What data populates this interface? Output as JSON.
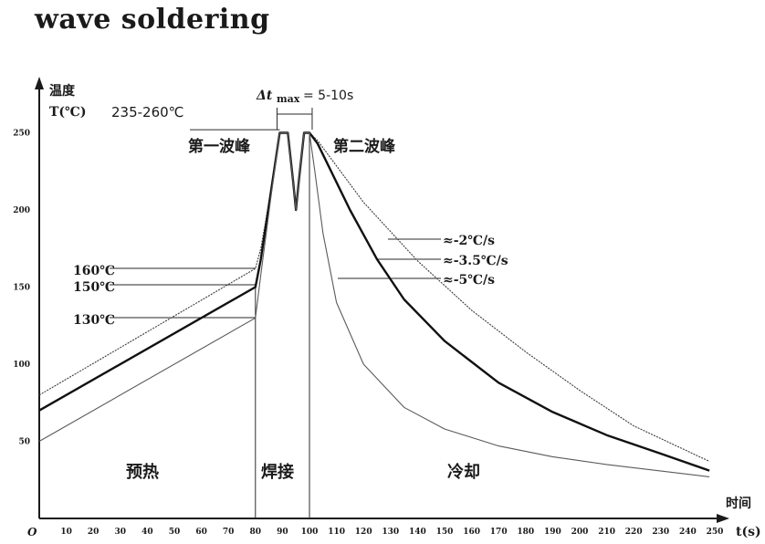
{
  "title": "wave soldering",
  "chart_data": {
    "type": "line",
    "title": "wave soldering",
    "ylabel_line1": "温度",
    "ylabel_line2": "T(℃)",
    "xlabel_line1": "时间",
    "xlabel_line2": "t(s)",
    "origin_label": "O",
    "xlim": [
      0,
      250
    ],
    "ylim": [
      0,
      255
    ],
    "x_ticks": [
      10,
      20,
      30,
      40,
      50,
      60,
      70,
      80,
      90,
      100,
      110,
      120,
      130,
      140,
      150,
      160,
      170,
      180,
      190,
      200,
      210,
      220,
      230,
      240,
      250
    ],
    "y_ticks": [
      50,
      100,
      150,
      200,
      250
    ],
    "series": [
      {
        "values": [
          [
            0,
            80
          ],
          [
            80,
            162
          ],
          [
            82,
            175
          ],
          [
            86,
            215
          ],
          [
            89,
            250
          ],
          [
            92,
            250
          ],
          [
            94,
            218
          ],
          [
            95,
            200
          ],
          [
            96,
            218
          ],
          [
            98,
            250
          ],
          [
            100,
            250
          ],
          [
            103,
            245
          ],
          [
            120,
            205
          ],
          [
            140,
            167
          ],
          [
            160,
            135
          ],
          [
            180,
            108
          ],
          [
            200,
            83
          ],
          [
            220,
            60
          ],
          [
            248,
            37
          ]
        ]
      },
      {
        "values": [
          [
            0,
            70
          ],
          [
            80,
            150
          ],
          [
            82,
            168
          ],
          [
            86,
            215
          ],
          [
            89,
            250
          ],
          [
            92,
            250
          ],
          [
            94,
            218
          ],
          [
            95,
            200
          ],
          [
            96,
            218
          ],
          [
            98,
            250
          ],
          [
            100,
            250
          ],
          [
            103,
            243
          ],
          [
            115,
            200
          ],
          [
            125,
            168
          ],
          [
            135,
            142
          ],
          [
            150,
            115
          ],
          [
            170,
            88
          ],
          [
            190,
            69
          ],
          [
            210,
            54
          ],
          [
            230,
            42
          ],
          [
            248,
            31
          ]
        ]
      },
      {
        "values": [
          [
            0,
            50
          ],
          [
            80,
            130
          ],
          [
            82,
            158
          ],
          [
            86,
            212
          ],
          [
            89,
            250
          ],
          [
            92,
            250
          ],
          [
            94,
            218
          ],
          [
            95,
            200
          ],
          [
            96,
            218
          ],
          [
            98,
            250
          ],
          [
            100,
            250
          ],
          [
            102,
            225
          ],
          [
            105,
            185
          ],
          [
            110,
            140
          ],
          [
            120,
            100
          ],
          [
            135,
            72
          ],
          [
            150,
            58
          ],
          [
            170,
            47
          ],
          [
            190,
            40
          ],
          [
            210,
            35
          ],
          [
            248,
            27
          ]
        ]
      }
    ],
    "annotations": {
      "temp_range": "235-260℃",
      "delta_t_sym": "Δt",
      "delta_t_sub": "max",
      "delta_t_value": "= 5-10s",
      "first_peak": "第一波峰",
      "second_peak": "第二波峰",
      "t160": "160℃",
      "t150": "150℃",
      "t130": "130℃",
      "rate1": "≈-2℃/s",
      "rate2": "≈-3.5℃/s",
      "rate3": "≈-5℃/s",
      "zone_preheat": "预热",
      "zone_solder": "焊接",
      "zone_cool": "冷却"
    },
    "grid": false,
    "legend": "none"
  }
}
